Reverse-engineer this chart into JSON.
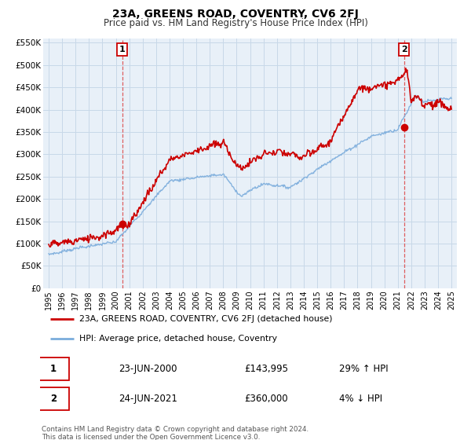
{
  "title": "23A, GREENS ROAD, COVENTRY, CV6 2FJ",
  "subtitle": "Price paid vs. HM Land Registry's House Price Index (HPI)",
  "red_label": "23A, GREENS ROAD, COVENTRY, CV6 2FJ (detached house)",
  "blue_label": "HPI: Average price, detached house, Coventry",
  "marker1_date": "23-JUN-2000",
  "marker1_price": 143995,
  "marker1_pct": "29% ↑ HPI",
  "marker2_date": "24-JUN-2021",
  "marker2_price": 360000,
  "marker2_pct": "4% ↓ HPI",
  "footnote": "Contains HM Land Registry data © Crown copyright and database right 2024.\nThis data is licensed under the Open Government Licence v3.0.",
  "red_color": "#cc0000",
  "blue_color": "#7aacdc",
  "grid_color": "#c8d8e8",
  "bg_color": "#e8f0f8",
  "xlim_left": 1994.6,
  "xlim_right": 2025.4,
  "ylim_bottom": 0,
  "ylim_top": 560000,
  "yticks": [
    0,
    50000,
    100000,
    150000,
    200000,
    250000,
    300000,
    350000,
    400000,
    450000,
    500000,
    550000
  ],
  "ytick_labels": [
    "£0",
    "£50K",
    "£100K",
    "£150K",
    "£200K",
    "£250K",
    "£300K",
    "£350K",
    "£400K",
    "£450K",
    "£500K",
    "£550K"
  ],
  "xticks": [
    1995,
    1996,
    1997,
    1998,
    1999,
    2000,
    2001,
    2002,
    2003,
    2004,
    2005,
    2006,
    2007,
    2008,
    2009,
    2010,
    2011,
    2012,
    2013,
    2014,
    2015,
    2016,
    2017,
    2018,
    2019,
    2020,
    2021,
    2022,
    2023,
    2024,
    2025
  ],
  "marker1_x": 2000.47,
  "marker1_y": 143995,
  "marker2_x": 2021.47,
  "marker2_y": 360000,
  "vline_color": "#dd4444",
  "box_edge_color": "#cc0000"
}
